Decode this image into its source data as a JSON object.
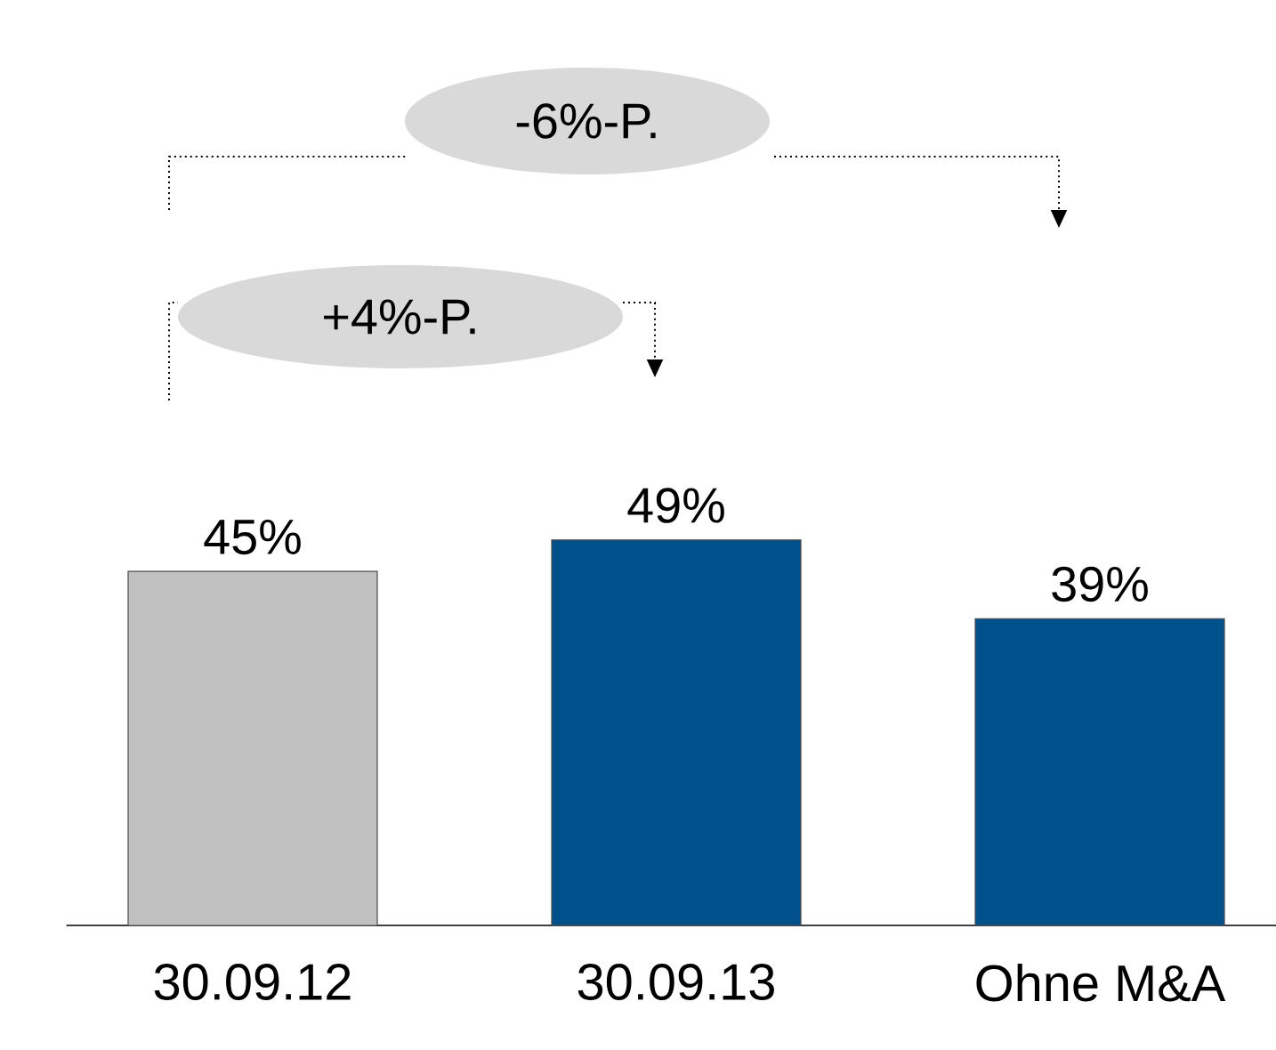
{
  "chart_data": {
    "type": "bar",
    "categories": [
      "30.09.12",
      "30.09.13",
      "Ohne M&A"
    ],
    "values": [
      45,
      49,
      39
    ],
    "colors": [
      "#c0c0c0",
      "#00508c",
      "#00508c"
    ],
    "value_labels": [
      "45%",
      "49%",
      "39%"
    ],
    "annotations": [
      "-6%-P.",
      "+4%-P."
    ]
  }
}
